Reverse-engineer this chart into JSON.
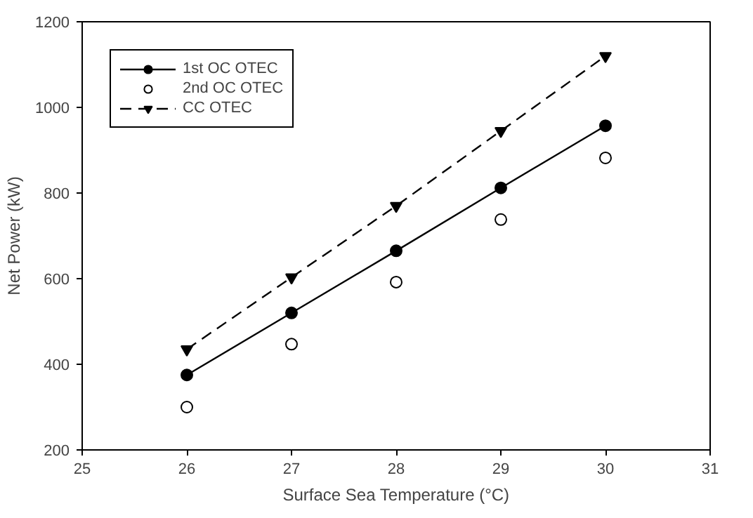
{
  "chart_data": {
    "type": "line",
    "xlabel": "Surface Sea Temperature (°C)",
    "ylabel": "Net Power (kW)",
    "x": [
      26,
      27,
      28,
      29,
      30
    ],
    "series": [
      {
        "name": "1st OC OTEC",
        "color": "#000000",
        "marker": "circle",
        "line_style": "solid",
        "values": [
          375,
          520,
          665,
          812,
          957
        ]
      },
      {
        "name": "2nd OC OTEC",
        "color": "#000000",
        "type": "scatter",
        "marker": "circle",
        "values": [
          300,
          447,
          592,
          738,
          882
        ]
      },
      {
        "name": "CC OTEC",
        "color": "#000000",
        "marker": "triangle",
        "line_style": "dashed",
        "values": [
          435,
          603,
          770,
          945,
          1120
        ]
      }
    ],
    "xlim": [
      25,
      31
    ],
    "xticks": [
      25,
      26,
      27,
      28,
      29,
      30,
      31
    ],
    "ylim": [
      200,
      1200
    ],
    "yticks": [
      200,
      400,
      600,
      800,
      1000,
      1200
    ],
    "grid": false,
    "legend": "top left"
  }
}
